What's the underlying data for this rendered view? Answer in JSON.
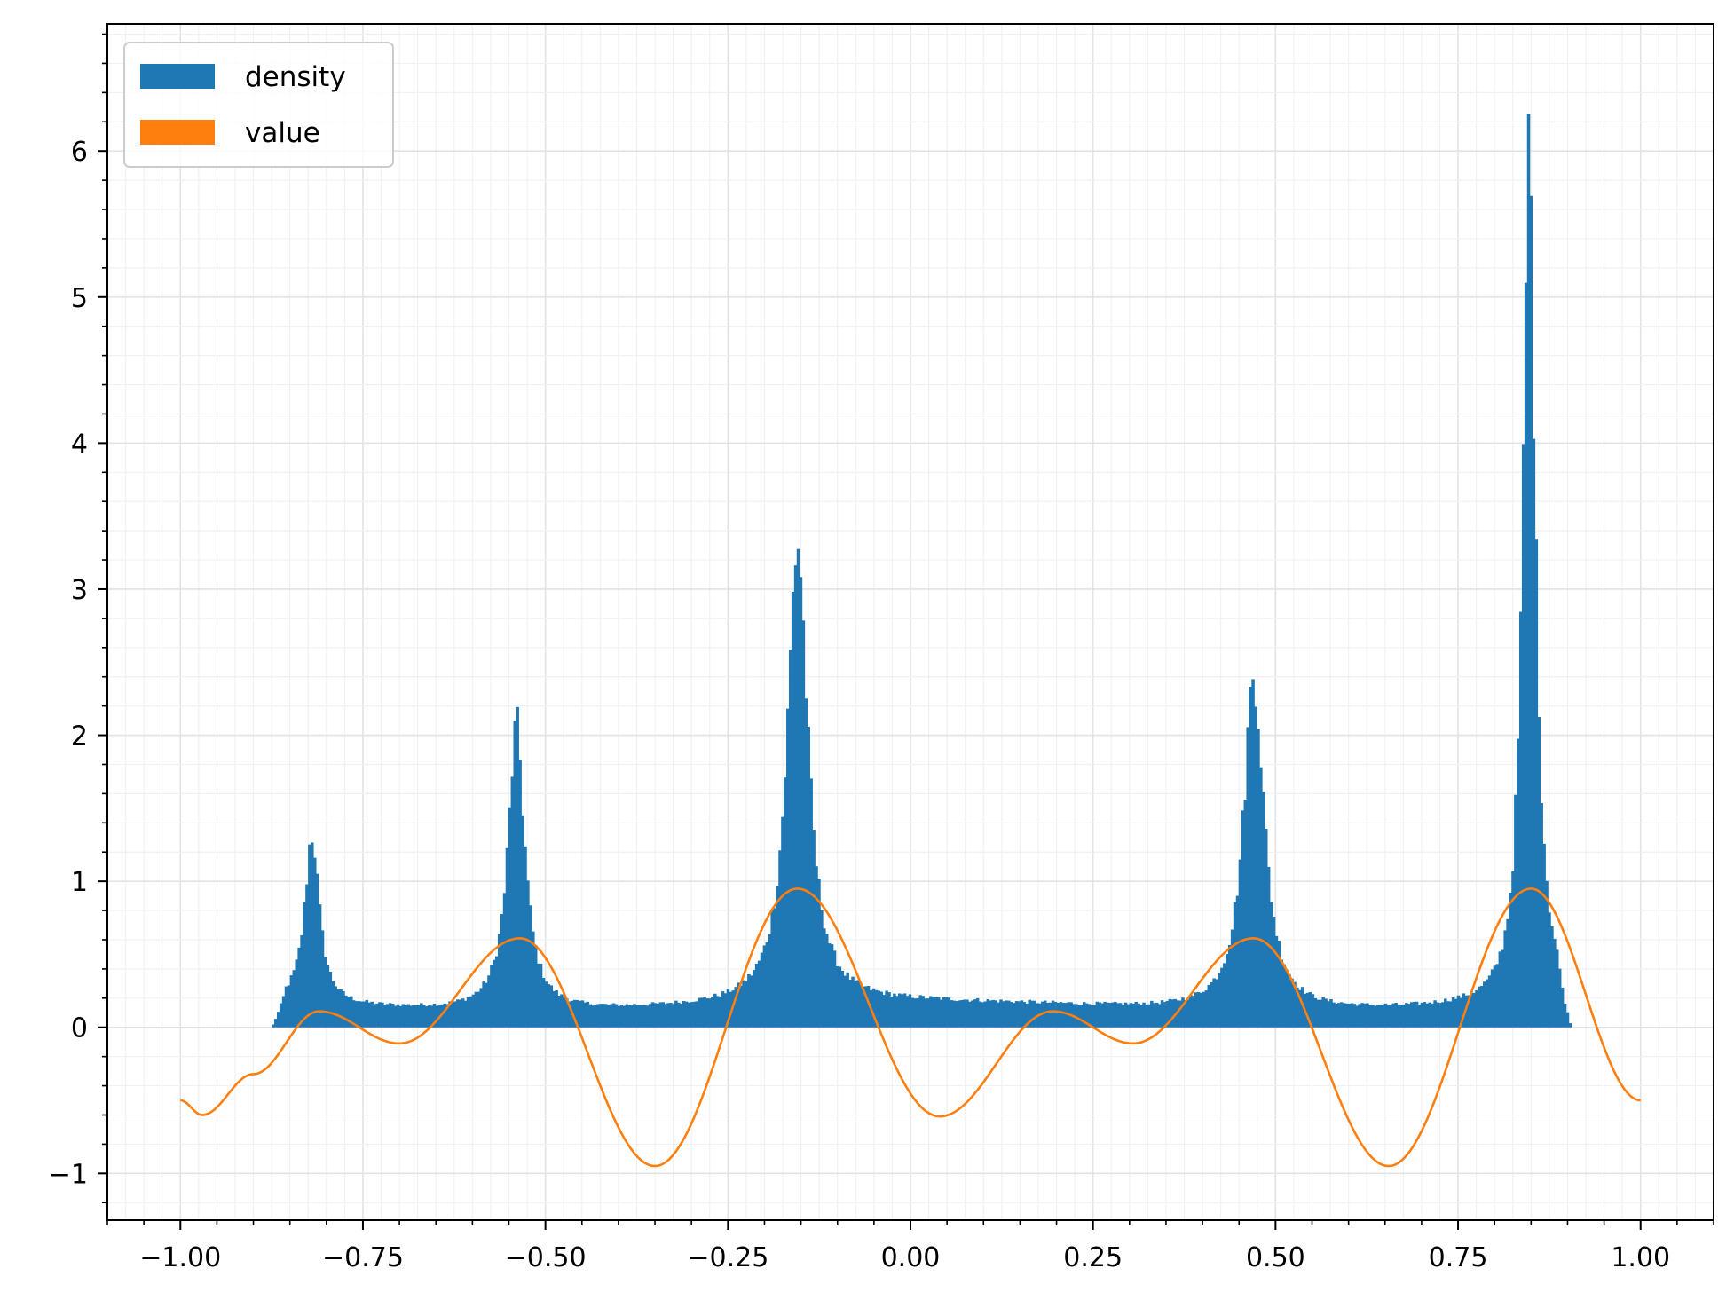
{
  "chart_data": {
    "type": "histogram+line",
    "title": "",
    "xlabel": "",
    "ylabel": "",
    "xlim": [
      -1.1,
      1.1
    ],
    "ylim": [
      -1.32,
      6.87
    ],
    "grid": true,
    "minor_grid": true,
    "legend_position": "upper left",
    "x_ticks": [
      -1.0,
      -0.75,
      -0.5,
      -0.25,
      0.0,
      0.25,
      0.5,
      0.75,
      1.0
    ],
    "x_tick_labels": [
      "−1.00",
      "−0.75",
      "−0.50",
      "−0.25",
      "0.00",
      "0.25",
      "0.50",
      "0.75",
      "1.00"
    ],
    "y_ticks": [
      -1,
      0,
      1,
      2,
      3,
      4,
      5,
      6
    ],
    "y_tick_labels": [
      "−1",
      "0",
      "1",
      "2",
      "3",
      "4",
      "5",
      "6"
    ],
    "series": [
      {
        "name": "density",
        "kind": "histogram",
        "color": "#1f77b4",
        "x_range": [
          -0.875,
          0.905
        ],
        "baseline": 0.12,
        "peaks": [
          {
            "x": -0.82,
            "height": 1.39
          },
          {
            "x": -0.54,
            "height": 2.22
          },
          {
            "x": -0.155,
            "height": 3.55
          },
          {
            "x": 0.47,
            "height": 2.63
          },
          {
            "x": 0.847,
            "height": 6.53
          }
        ]
      },
      {
        "name": "value",
        "kind": "line",
        "color": "#ff7f0e",
        "x_range": [
          -1.0,
          1.0
        ],
        "samples": [
          [
            -1.0,
            -0.5
          ],
          [
            -0.97,
            -0.6
          ],
          [
            -0.9,
            -0.32
          ],
          [
            -0.81,
            0.11
          ],
          [
            -0.7,
            -0.11
          ],
          [
            -0.535,
            0.61
          ],
          [
            -0.35,
            -0.95
          ],
          [
            -0.155,
            0.95
          ],
          [
            0.04,
            -0.61
          ],
          [
            0.195,
            0.11
          ],
          [
            0.305,
            -0.11
          ],
          [
            0.47,
            0.61
          ],
          [
            0.655,
            -0.95
          ],
          [
            0.85,
            0.95
          ],
          [
            1.0,
            -0.5
          ]
        ]
      }
    ]
  }
}
